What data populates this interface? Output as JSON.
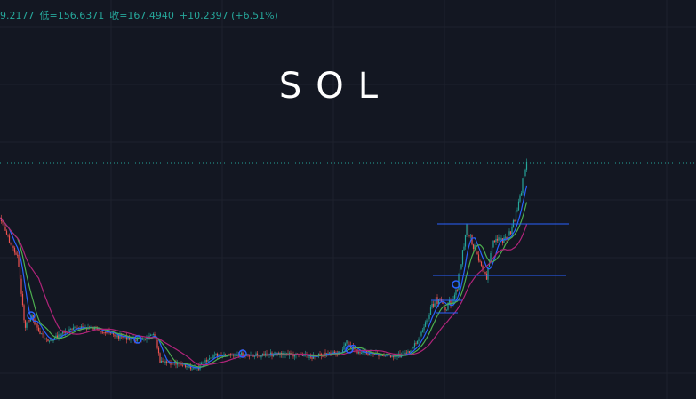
{
  "header": {
    "items": [
      "9.2177",
      "低=156.6371",
      "收=167.4940",
      "+10.2397 (+6.51%)"
    ]
  },
  "title": "SOL"
}
